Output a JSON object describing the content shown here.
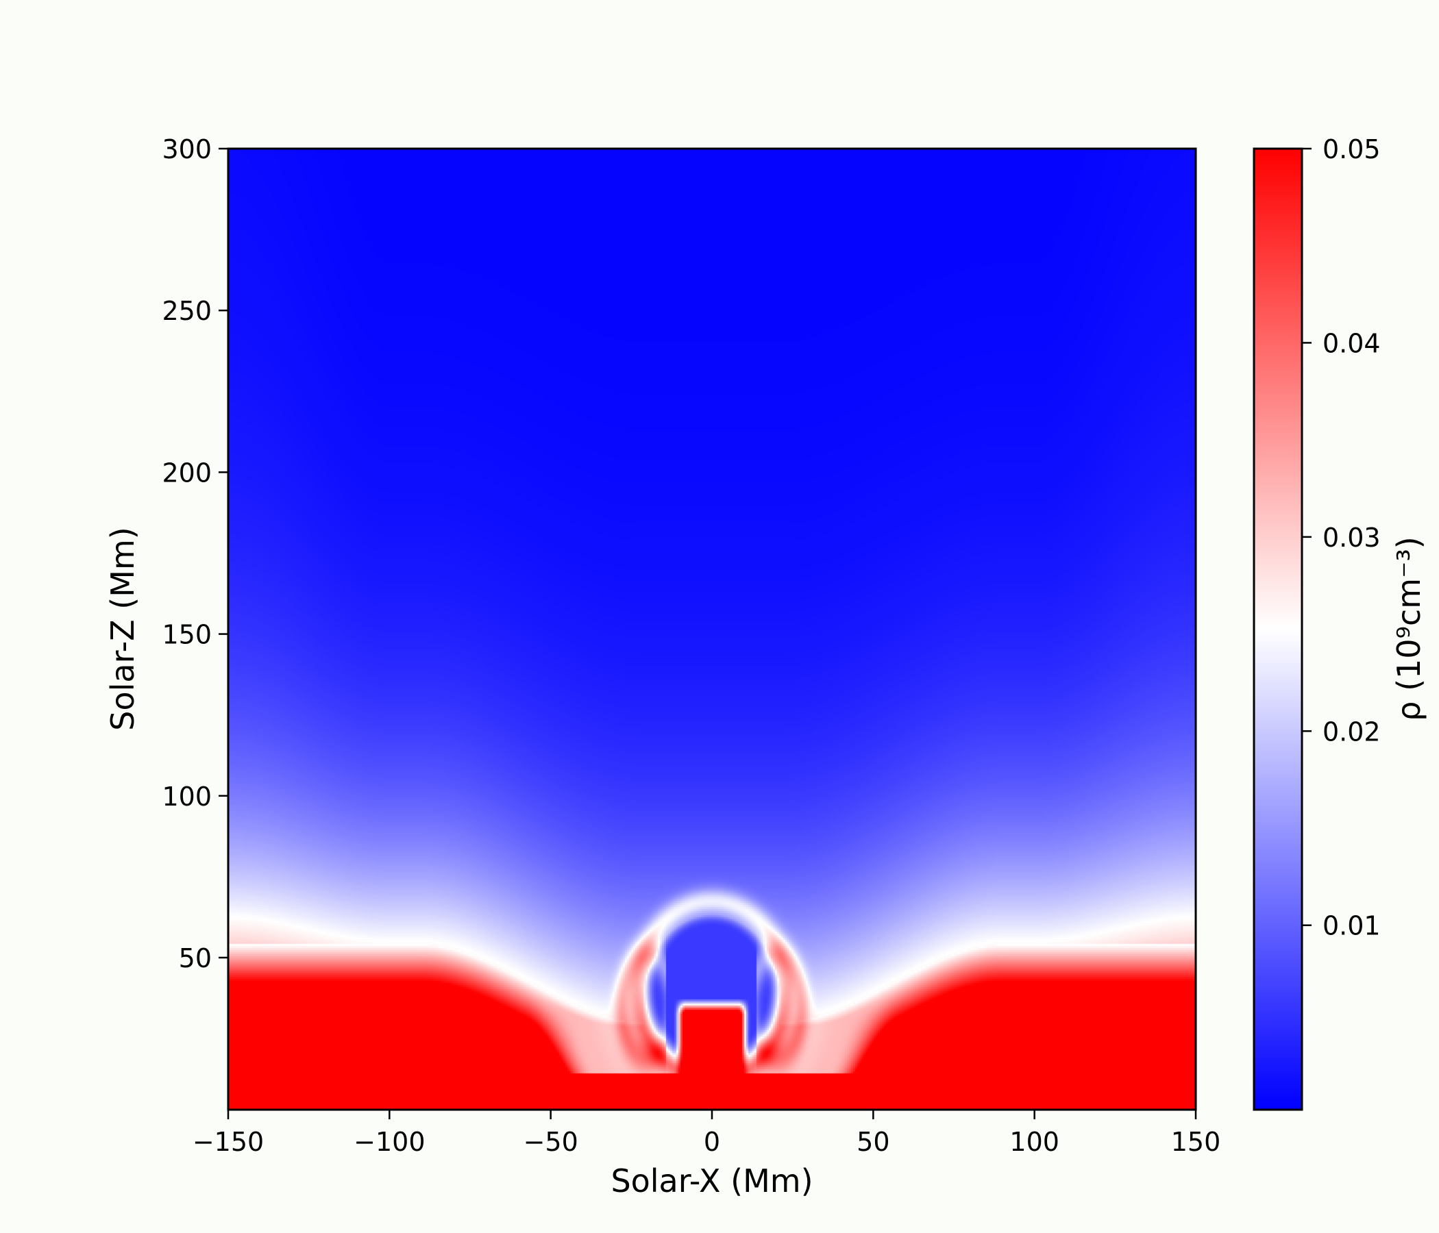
{
  "chart_data": {
    "type": "heatmap",
    "title": "",
    "xlabel": "Solar-X (Mm)",
    "ylabel": "Solar-Z (Mm)",
    "xlim": [
      -150,
      150
    ],
    "ylim": [
      3,
      300
    ],
    "xticks": [
      -150,
      -100,
      -50,
      0,
      50,
      100,
      150
    ],
    "xtick_labels": [
      "−150",
      "−100",
      "−50",
      "0",
      "50",
      "100",
      "150"
    ],
    "yticks": [
      50,
      100,
      150,
      200,
      250,
      300
    ],
    "ytick_labels": [
      "50",
      "100",
      "150",
      "200",
      "250",
      "300"
    ],
    "colorbar": {
      "label": "ρ (10⁹cm⁻³)",
      "range": [
        0.0005,
        0.05
      ],
      "ticks": [
        0.01,
        0.02,
        0.03,
        0.04,
        0.05
      ],
      "tick_labels": [
        "0.01",
        "0.02",
        "0.03",
        "0.04",
        "0.05"
      ],
      "colormap": "bwr",
      "colors": [
        "#0000ff",
        "#ffffff",
        "#ff0000"
      ]
    },
    "field_description": "density: high (>0.05) near base z<15; white transition layer near z≈55 at x=±150 dipping to z≈30 near x=±30; central dense core up to z≈35 for |x|<10; cavity (~0.008) at x≈0, z≈45 bounded by white arcs; low density (<0.003) above z≈200",
    "grid": false
  }
}
